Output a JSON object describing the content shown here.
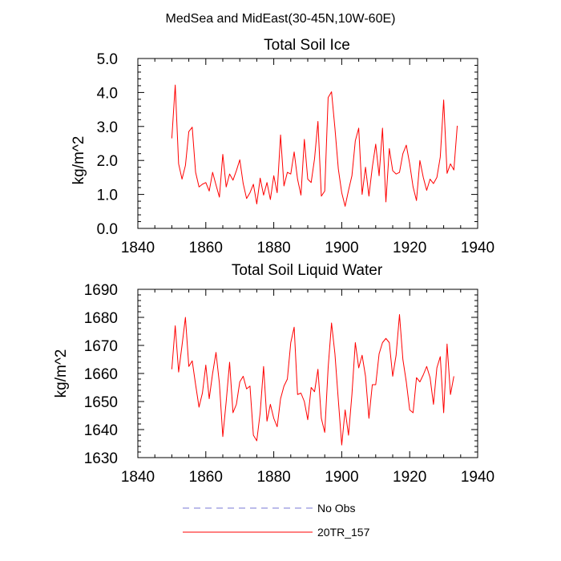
{
  "suptitle": "MedSea and MidEast(30-45N,10W-60E)",
  "legend": {
    "items": [
      {
        "label": "No Obs",
        "color": "#7a7ad6",
        "dashed": true
      },
      {
        "label": "20TR_157",
        "color": "#ff0000",
        "dashed": false
      }
    ]
  },
  "chart_data": [
    {
      "type": "line",
      "title": "Total Soil Ice",
      "xlabel": "",
      "ylabel": "kg/m^2",
      "xlim": [
        1840,
        1940
      ],
      "ylim": [
        0,
        5
      ],
      "xticks": [
        1840,
        1860,
        1880,
        1900,
        1920,
        1940
      ],
      "yticks": [
        0,
        1,
        2,
        3,
        4,
        5
      ],
      "ytick_labels": [
        "0.0",
        "1.0",
        "2.0",
        "3.0",
        "4.0",
        "5.0"
      ],
      "series": [
        {
          "name": "20TR_157",
          "color": "#ff0000",
          "x_start": 1850,
          "x_step": 1,
          "values": [
            2.65,
            4.22,
            1.9,
            1.45,
            1.85,
            2.85,
            2.98,
            1.65,
            1.22,
            1.3,
            1.35,
            1.1,
            1.65,
            1.28,
            0.92,
            2.18,
            1.22,
            1.6,
            1.42,
            1.7,
            2.02,
            1.32,
            0.88,
            1.05,
            1.3,
            0.72,
            1.48,
            0.98,
            1.35,
            0.85,
            1.55,
            1.05,
            2.75,
            1.25,
            1.65,
            1.6,
            2.25,
            1.45,
            0.98,
            2.62,
            1.45,
            1.35,
            2.05,
            3.15,
            0.95,
            1.1,
            3.85,
            4.02,
            2.95,
            1.75,
            1.05,
            0.65,
            1.12,
            1.55,
            2.58,
            2.95,
            1.0,
            1.8,
            0.95,
            1.8,
            2.48,
            1.55,
            2.95,
            0.78,
            2.35,
            1.7,
            1.6,
            1.65,
            2.2,
            2.45,
            1.9,
            1.22,
            0.82,
            2.0,
            1.5,
            1.12,
            1.45,
            1.32,
            1.5,
            2.1,
            3.78,
            1.62,
            1.9,
            1.72,
            3.02
          ]
        }
      ]
    },
    {
      "type": "line",
      "title": "Total Soil Liquid Water",
      "xlabel": "",
      "ylabel": "kg/m^2",
      "xlim": [
        1840,
        1940
      ],
      "ylim": [
        1630,
        1690
      ],
      "xticks": [
        1840,
        1860,
        1880,
        1900,
        1920,
        1940
      ],
      "yticks": [
        1630,
        1640,
        1650,
        1660,
        1670,
        1680,
        1690
      ],
      "ytick_labels": [
        "1630",
        "1640",
        "1650",
        "1660",
        "1670",
        "1680",
        "1690"
      ],
      "series": [
        {
          "name": "20TR_157",
          "color": "#ff0000",
          "x_start": 1850,
          "x_step": 1,
          "values": [
            1661.5,
            1677.0,
            1660.5,
            1670.0,
            1680.0,
            1662.5,
            1664.5,
            1656.0,
            1648.0,
            1653.0,
            1663.0,
            1651.0,
            1660.0,
            1667.5,
            1656.5,
            1637.5,
            1650.0,
            1664.0,
            1646.0,
            1649.0,
            1657.0,
            1659.0,
            1654.5,
            1655.5,
            1638.0,
            1636.0,
            1646.0,
            1662.5,
            1643.0,
            1649.0,
            1644.0,
            1641.0,
            1651.0,
            1655.5,
            1658.0,
            1671.0,
            1676.5,
            1652.5,
            1653.0,
            1650.0,
            1643.5,
            1655.0,
            1653.5,
            1661.5,
            1644.0,
            1639.0,
            1662.0,
            1678.0,
            1667.0,
            1650.5,
            1634.5,
            1647.0,
            1638.0,
            1652.5,
            1671.0,
            1662.0,
            1666.5,
            1659.0,
            1644.0,
            1656.0,
            1656.0,
            1667.0,
            1671.0,
            1672.5,
            1671.0,
            1659.0,
            1666.5,
            1681.0,
            1665.0,
            1657.0,
            1647.0,
            1646.0,
            1658.5,
            1657.0,
            1659.5,
            1662.5,
            1658.5,
            1649.0,
            1662.0,
            1666.0,
            1646.0,
            1670.5,
            1652.5,
            1659.0
          ]
        }
      ]
    }
  ]
}
